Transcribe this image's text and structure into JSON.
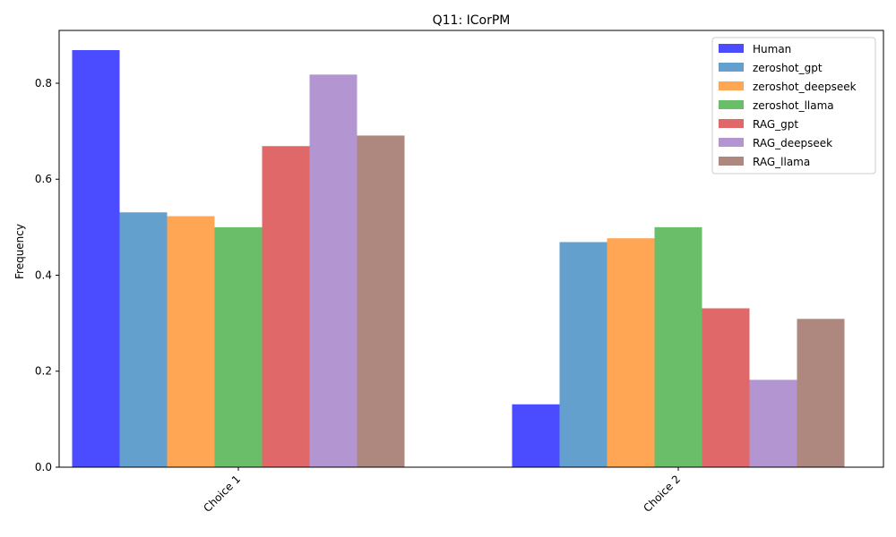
{
  "chart_data": {
    "type": "bar",
    "title": "Q11: ICorPM",
    "xlabel": "",
    "ylabel": "Frequency",
    "categories": [
      "Choice 1",
      "Choice 2"
    ],
    "ylim": [
      0,
      0.91
    ],
    "yticks": [
      0.0,
      0.2,
      0.4,
      0.6,
      0.8
    ],
    "ytick_labels": [
      "0.0",
      "0.2",
      "0.4",
      "0.6",
      "0.8"
    ],
    "grid": false,
    "legend_position": "top-right",
    "series": [
      {
        "name": "Human",
        "color": "#4b4bff",
        "values": [
          0.869,
          0.131
        ]
      },
      {
        "name": "zeroshot_gpt",
        "color": "#64a0cd",
        "values": [
          0.531,
          0.469
        ]
      },
      {
        "name": "zeroshot_deepseek",
        "color": "#ffa655",
        "values": [
          0.523,
          0.477
        ]
      },
      {
        "name": "zeroshot_llama",
        "color": "#6abe6a",
        "values": [
          0.5,
          0.5
        ]
      },
      {
        "name": "RAG_gpt",
        "color": "#e06868",
        "values": [
          0.669,
          0.331
        ]
      },
      {
        "name": "RAG_deepseek",
        "color": "#b295d1",
        "values": [
          0.818,
          0.182
        ]
      },
      {
        "name": "RAG_llama",
        "color": "#ae887f",
        "values": [
          0.691,
          0.309
        ]
      }
    ]
  }
}
